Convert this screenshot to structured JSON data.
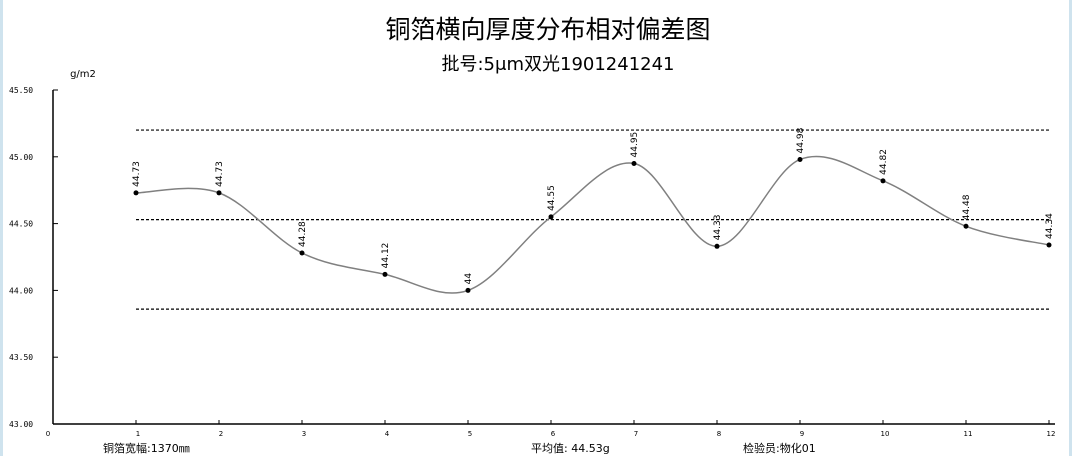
{
  "chart_data": {
    "type": "line",
    "title": "铜箔横向厚度分布相对偏差图",
    "subtitle": "批号:5μm双光1901241241",
    "ylabel": "g/m2",
    "xlim": [
      0,
      12
    ],
    "ylim": [
      43.0,
      45.5
    ],
    "yticks": [
      "43.00",
      "43.50",
      "44.00",
      "44.50",
      "45.00",
      "45.50"
    ],
    "xticks": [
      "0",
      "1",
      "2",
      "3",
      "4",
      "5",
      "6",
      "7",
      "8",
      "9",
      "10",
      "11",
      "12"
    ],
    "x": [
      1,
      2,
      3,
      4,
      5,
      6,
      7,
      8,
      9,
      10,
      11,
      12
    ],
    "values": [
      44.73,
      44.73,
      44.28,
      44.12,
      44,
      44.55,
      44.95,
      44.33,
      44.98,
      44.82,
      44.48,
      44.34
    ],
    "labels": [
      "44.73",
      "44.73",
      "44.28",
      "44.12",
      "44",
      "44.55",
      "44.95",
      "44.33",
      "44.98",
      "44.82",
      "44.48",
      "44.34"
    ],
    "reference_lines": [
      45.2,
      44.53,
      43.86
    ],
    "grid": false,
    "smooth": true,
    "line_color": "#808080",
    "footer": {
      "width": "铜箔宽幅:1370㎜",
      "average": "平均值: 44.53g",
      "inspector": "检验员:物化01"
    }
  }
}
